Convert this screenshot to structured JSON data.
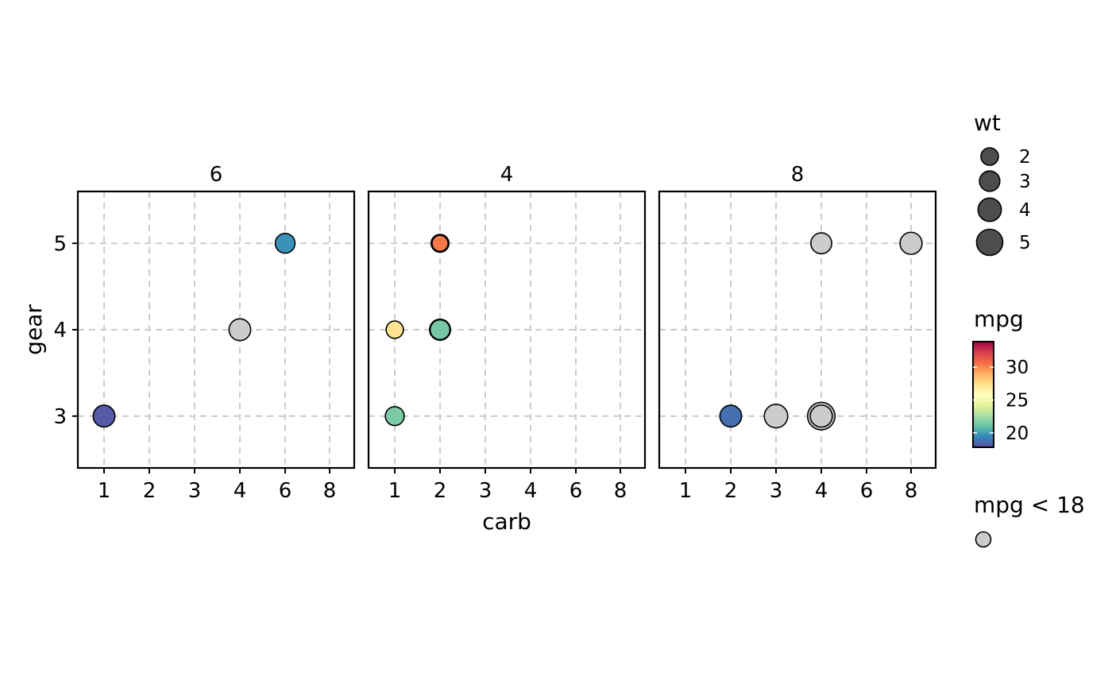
{
  "chart_data": {
    "type": "scatter",
    "facet_variable_values": [
      "6",
      "4",
      "8"
    ],
    "xlabel": "carb",
    "ylabel": "gear",
    "x_categories": [
      "1",
      "2",
      "3",
      "4",
      "6",
      "8"
    ],
    "y_ticks": [
      3,
      4,
      5
    ],
    "ylim": [
      2.4,
      5.6
    ],
    "grid": true,
    "panels": [
      {
        "label": "6",
        "points": [
          {
            "carb": "1",
            "gear": 3,
            "mpg": 18.1,
            "wt": 3.46,
            "highlight": false
          },
          {
            "carb": "4",
            "gear": 4,
            "mpg": 17.8,
            "wt": 3.44,
            "highlight": true
          },
          {
            "carb": "6",
            "gear": 5,
            "mpg": 19.7,
            "wt": 2.77,
            "highlight": false
          }
        ]
      },
      {
        "label": "4",
        "points": [
          {
            "carb": "1",
            "gear": 3,
            "mpg": 21.5,
            "wt": 2.47,
            "highlight": false
          },
          {
            "carb": "1",
            "gear": 4,
            "mpg": 27.3,
            "wt": 1.94,
            "highlight": false
          },
          {
            "carb": "2",
            "gear": 4,
            "mpg": 22.8,
            "wt": 3.19,
            "highlight": false
          },
          {
            "carb": "2",
            "gear": 4,
            "mpg": 21.4,
            "wt": 2.78,
            "highlight": false
          },
          {
            "carb": "2",
            "gear": 5,
            "mpg": 30.4,
            "wt": 1.51,
            "highlight": false
          },
          {
            "carb": "2",
            "gear": 5,
            "mpg": 26.0,
            "wt": 2.14,
            "highlight": false
          }
        ]
      },
      {
        "label": "8",
        "points": [
          {
            "carb": "2",
            "gear": 3,
            "mpg": 18.7,
            "wt": 3.44,
            "highlight": false
          },
          {
            "carb": "3",
            "gear": 3,
            "mpg": 16.4,
            "wt": 4.07,
            "highlight": true
          },
          {
            "carb": "4",
            "gear": 3,
            "mpg": 10.4,
            "wt": 5.42,
            "highlight": true
          },
          {
            "carb": "4",
            "gear": 3,
            "mpg": 14.3,
            "wt": 3.57,
            "highlight": true
          },
          {
            "carb": "4",
            "gear": 5,
            "mpg": 15.8,
            "wt": 3.17,
            "highlight": true
          },
          {
            "carb": "8",
            "gear": 5,
            "mpg": 15.0,
            "wt": 3.57,
            "highlight": true
          }
        ]
      }
    ],
    "legends": {
      "size": {
        "title": "wt",
        "breaks": [
          2,
          3,
          4,
          5
        ],
        "labels": [
          "2",
          "3",
          "4",
          "5"
        ],
        "fill": "#4d4d4d"
      },
      "color": {
        "title": "mpg",
        "range": [
          17.8,
          33.9
        ],
        "breaks": [
          20,
          25,
          30
        ],
        "labels": [
          "20",
          "25",
          "30"
        ],
        "palette": [
          "#5E4FA2",
          "#3288BD",
          "#66C2A5",
          "#ABDDA4",
          "#E6F598",
          "#FFFFBF",
          "#FEE08B",
          "#FDAE61",
          "#F46D43",
          "#D53E4F",
          "#9E0142"
        ]
      },
      "highlight": {
        "title": "mpg < 18",
        "fill": "#cccccc"
      }
    },
    "legend_position": "right"
  }
}
